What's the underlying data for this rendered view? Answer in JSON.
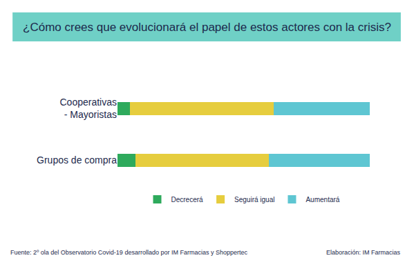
{
  "chart_data": {
    "type": "bar",
    "orientation": "horizontal",
    "stacked": true,
    "title": "¿Cómo crees que evolucionará el papel de estos actores con la crisis?",
    "categories": [
      "Cooperativas - Mayoristas",
      "Grupos de compra"
    ],
    "series": [
      {
        "name": "Decrecerá",
        "color": "#2eaa5c",
        "values": [
          5,
          7
        ]
      },
      {
        "name": "Seguirá igual",
        "color": "#e6cd3e",
        "values": [
          57,
          53
        ]
      },
      {
        "name": "Aumentará",
        "color": "#5ec6d2",
        "values": [
          38,
          40
        ]
      }
    ],
    "xlim": [
      0,
      100
    ],
    "tick_labels": "y",
    "grid": false,
    "data_labels": false,
    "legend": "bottom",
    "annotations": [
      "Fuente: 2º ola del Observatorio Covid-19 desarrollado por IM Farmacias y Shoppertec",
      "Elaboración: IM Farmacias"
    ]
  }
}
